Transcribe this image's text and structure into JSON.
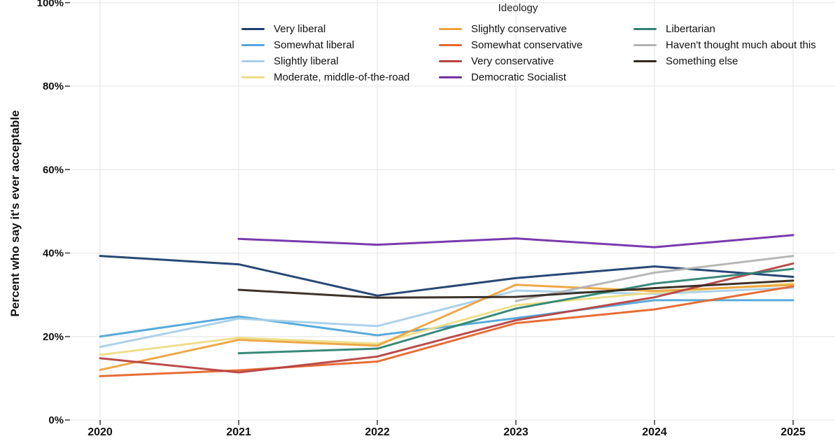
{
  "figure": {
    "ylabel": "Percent who say it's ever acceptable",
    "legend_title": "Ideology"
  },
  "chart_data": {
    "type": "line",
    "title": "",
    "xlabel": "",
    "ylabel": "Percent who say it's ever acceptable",
    "legend_title": "Ideology",
    "legend_position": "top",
    "grid": true,
    "x": [
      "2020",
      "2021",
      "2022",
      "2023",
      "2024",
      "2025"
    ],
    "ylim": [
      0,
      100
    ],
    "yticks": [
      0,
      20,
      40,
      60,
      80,
      100
    ],
    "ytick_labels": [
      "0%",
      "20%",
      "40%",
      "60%",
      "80%",
      "100%"
    ],
    "series": [
      {
        "name": "Very liberal",
        "color": "#1c3e6e",
        "values": [
          39.3,
          37.3,
          29.8,
          34.0,
          36.8,
          34.3
        ]
      },
      {
        "name": "Somewhat liberal",
        "color": "#51a7d9",
        "values": [
          20.0,
          24.8,
          20.3,
          24.4,
          28.7,
          28.7
        ]
      },
      {
        "name": "Slightly liberal",
        "color": "#a9cfe8",
        "values": [
          17.5,
          24.3,
          22.5,
          31.0,
          30.2,
          31.7
        ]
      },
      {
        "name": "Moderate, middle-of-the-road",
        "color": "#eedd85",
        "values": [
          15.6,
          19.7,
          18.3,
          27.5,
          30.5,
          32.7
        ]
      },
      {
        "name": "Slightly conservative",
        "color": "#eca33d",
        "values": [
          12.0,
          19.2,
          17.8,
          32.4,
          30.9,
          32.4
        ]
      },
      {
        "name": "Somewhat conservative",
        "color": "#e4672c",
        "values": [
          10.5,
          11.9,
          14.0,
          23.2,
          26.5,
          32.0
        ]
      },
      {
        "name": "Very conservative",
        "color": "#b84242",
        "values": [
          14.8,
          11.4,
          15.2,
          23.9,
          29.4,
          37.5
        ]
      },
      {
        "name": "Democratic Socialist",
        "color": "#7230a8",
        "values": [
          null,
          43.4,
          42.0,
          43.5,
          41.4,
          44.3
        ]
      },
      {
        "name": "Libertarian",
        "color": "#2e8372",
        "values": [
          null,
          16.0,
          17.1,
          26.7,
          32.7,
          36.2
        ]
      },
      {
        "name": "Haven't thought much about this",
        "color": "#b3b3b3",
        "values": [
          null,
          null,
          null,
          28.5,
          35.3,
          39.3
        ]
      },
      {
        "name": "Something else",
        "color": "#33281f",
        "values": [
          null,
          31.2,
          29.3,
          29.5,
          31.6,
          33.4
        ]
      }
    ],
    "legend_columns": [
      [
        0,
        1,
        2,
        3
      ],
      [
        4,
        5,
        6,
        7
      ],
      [
        8,
        9,
        10
      ]
    ]
  },
  "layout_colors": {
    "grid": "#e9e9e9",
    "tick": "#444444",
    "text": "#111111"
  }
}
